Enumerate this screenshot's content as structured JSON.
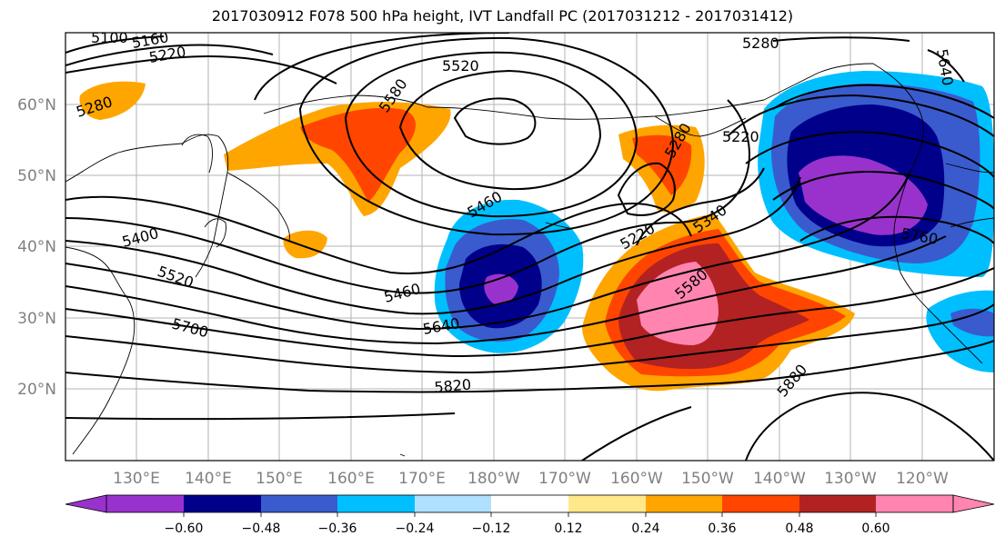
{
  "title": "2017030912 F078 500 hPa height, IVT Landfall PC (2017031212 - 2017031412)",
  "latitude_labels": [
    "60°N",
    "50°N",
    "40°N",
    "30°N",
    "20°N"
  ],
  "longitude_labels": [
    "130°E",
    "140°E",
    "150°E",
    "160°E",
    "170°E",
    "180°W",
    "170°W",
    "160°W",
    "150°W",
    "140°W",
    "130°W",
    "120°W"
  ],
  "contour_labels": [
    "5100",
    "5160",
    "5220",
    "5280",
    "5520",
    "5580",
    "5400",
    "5520",
    "5700",
    "5460",
    "5460",
    "5640",
    "5820",
    "5220",
    "5280",
    "5220",
    "5340",
    "5580",
    "5880",
    "5760",
    "5640"
  ],
  "colorbar": {
    "ticks": [
      "−0.60",
      "−0.48",
      "−0.36",
      "−0.24",
      "−0.12",
      "0.12",
      "0.24",
      "0.36",
      "0.48",
      "0.60"
    ],
    "colors": [
      "#9932cc",
      "#00008b",
      "#3a5bcd",
      "#00bfff",
      "#b0e0ff",
      "#ffffff",
      "#ffe88a",
      "#ffa500",
      "#ff4500",
      "#b22222",
      "#ff85b0"
    ]
  },
  "colors": {
    "neg_very_strong": "#9932cc",
    "neg_strong": "#00008b",
    "neg_moderate": "#3a5bcd",
    "neg_weak": "#00bfff",
    "pos_weak": "#ffa500",
    "pos_moderate": "#ff4500",
    "pos_strong": "#b22222",
    "pos_very_strong": "#ff85b0",
    "graticule": "#b3b3b3"
  }
}
